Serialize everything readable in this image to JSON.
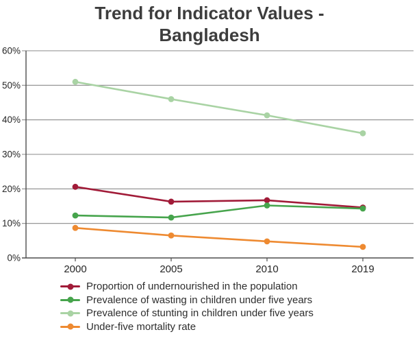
{
  "title": "Trend for Indicator Values - Bangladesh",
  "colors": {
    "title_text": "#3d3d3d",
    "grid": "#8a8a8a",
    "axis": "#4d4d4d",
    "tick_text": "#262626",
    "legend_text": "#2d2d2d"
  },
  "chart_data": {
    "type": "line",
    "title": "Trend for Indicator Values - Bangladesh",
    "categories": [
      "2000",
      "2005",
      "2010",
      "2019"
    ],
    "yticks": [
      "0%",
      "10%",
      "20%",
      "30%",
      "40%",
      "50%",
      "60%"
    ],
    "ylim": [
      0,
      60
    ],
    "ytick_step": 10,
    "ytick_suffix": "%",
    "grid": true,
    "legend_position": "bottom",
    "xlabel": "",
    "ylabel": "",
    "series": [
      {
        "key": "undernourished",
        "name": "Proportion of undernourished in the population",
        "color": "#a11b38",
        "values": [
          20.6,
          16.3,
          16.7,
          14.6
        ]
      },
      {
        "key": "wasting",
        "name": "Prevalence of wasting in children under five years",
        "color": "#46a44c",
        "values": [
          12.3,
          11.7,
          15.2,
          14.3
        ]
      },
      {
        "key": "stunting",
        "name": "Prevalence of stunting in children under five years",
        "color": "#a9d3a4",
        "values": [
          51.0,
          46.0,
          41.3,
          36.1
        ]
      },
      {
        "key": "u5mr",
        "name": "Under-five mortality rate",
        "color": "#ee8a31",
        "values": [
          8.7,
          6.5,
          4.8,
          3.2
        ]
      }
    ]
  }
}
